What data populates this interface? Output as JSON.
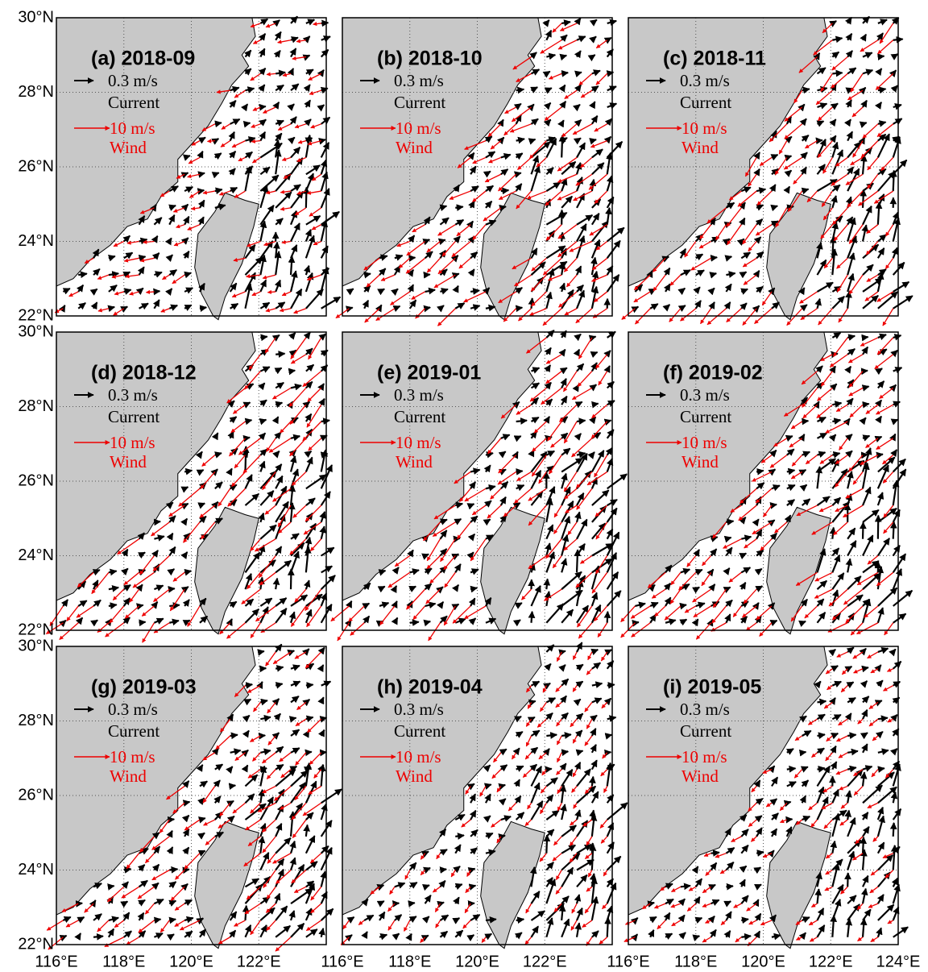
{
  "map": {
    "xlim": [
      116,
      124
    ],
    "ylim": [
      22,
      30
    ],
    "xticks": [
      {
        "value": 116,
        "label": "116°E"
      },
      {
        "value": 118,
        "label": "118°E"
      },
      {
        "value": 120,
        "label": "120°E"
      },
      {
        "value": 122,
        "label": "122°E"
      },
      {
        "value": 124,
        "label": "124°E"
      }
    ],
    "yticks": [
      {
        "value": 22,
        "label": "22°N"
      },
      {
        "value": 24,
        "label": "24°N"
      },
      {
        "value": 26,
        "label": "26°N"
      },
      {
        "value": 28,
        "label": "28°N"
      },
      {
        "value": 30,
        "label": "30°N"
      }
    ],
    "legend": {
      "current_scale": "0.3 m/s",
      "current_label": "Current",
      "wind_scale": "10 m/s",
      "wind_label": "Wind"
    },
    "panels": [
      {
        "title": "(a) 2018-09"
      },
      {
        "title": "(b) 2018-10"
      },
      {
        "title": "(c) 2018-11"
      },
      {
        "title": "(d) 2018-12"
      },
      {
        "title": "(e) 2019-01"
      },
      {
        "title": "(f) 2019-02"
      },
      {
        "title": "(g) 2019-03"
      },
      {
        "title": "(h) 2019-04"
      },
      {
        "title": "(i) 2019-05"
      }
    ]
  }
}
